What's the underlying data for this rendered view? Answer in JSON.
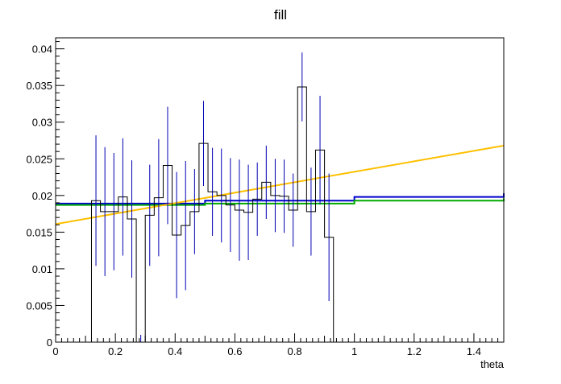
{
  "chart_data": {
    "type": "histogram",
    "title": "fill",
    "xlabel": "theta",
    "ylabel": "",
    "xlim": [
      0,
      1.5
    ],
    "ylim": [
      0,
      0.0415
    ],
    "grid": false,
    "legend": "none",
    "x_ticks": [
      "0",
      "0.2",
      "0.4",
      "0.6",
      "0.8",
      "1",
      "1.2",
      "1.4"
    ],
    "y_ticks": [
      "0",
      "0.005",
      "0.01",
      "0.015",
      "0.02",
      "0.025",
      "0.03",
      "0.035",
      "0.04"
    ],
    "histogram": {
      "bin_width": 0.03,
      "x_start": 0.12,
      "values": [
        0.0193,
        0.0178,
        0.0178,
        0.0198,
        0.0168,
        0.0,
        0.0173,
        0.0197,
        0.0241,
        0.0146,
        0.0159,
        0.0178,
        0.0271,
        0.0205,
        0.02,
        0.0187,
        0.018,
        0.0177,
        0.0195,
        0.0218,
        0.02,
        0.0199,
        0.018,
        0.0348,
        0.0178,
        0.0262,
        0.0143
      ],
      "errors": [
        0.0089,
        0.0088,
        0.008,
        0.008,
        0.008,
        0.001,
        0.0069,
        0.008,
        0.008,
        0.0086,
        0.0088,
        0.0058,
        0.0058,
        0.006,
        0.0064,
        0.0064,
        0.0069,
        0.0065,
        0.005,
        0.005,
        0.005,
        0.005,
        0.005,
        0.0047,
        0.006,
        0.0074,
        0.0087
      ],
      "line_color": "#000000",
      "error_color": "#0000b3"
    },
    "series": [
      {
        "type": "step",
        "color": "#0000cc",
        "points": [
          [
            0,
            0.0189
          ],
          [
            0.5,
            0.0193
          ],
          [
            1.0,
            0.0198
          ],
          [
            1.5,
            0.0203
          ]
        ]
      },
      {
        "type": "step",
        "color": "#00aa00",
        "points": [
          [
            0,
            0.0187
          ],
          [
            0.5,
            0.0189
          ],
          [
            1.0,
            0.0193
          ],
          [
            1.5,
            0.0196
          ]
        ]
      },
      {
        "type": "line",
        "color": "#ffc000",
        "points": [
          [
            0,
            0.0161
          ],
          [
            1.5,
            0.0268
          ]
        ]
      }
    ]
  }
}
